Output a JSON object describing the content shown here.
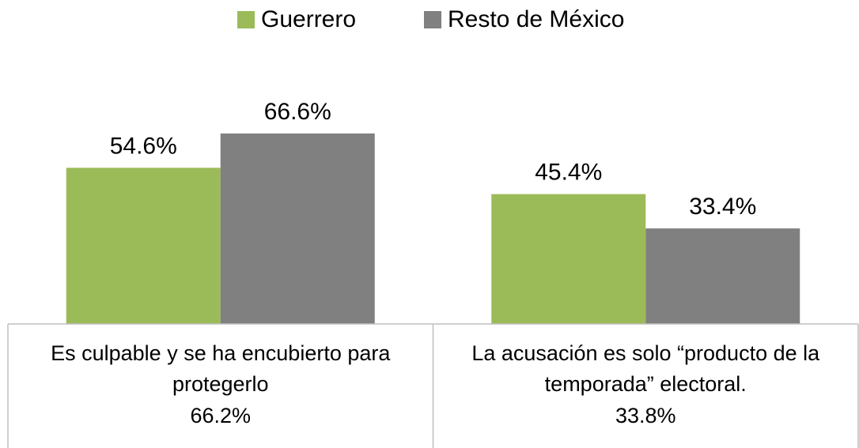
{
  "chart_data": {
    "type": "bar",
    "categories": [
      "Es culpable y se ha encubierto para protegerlo",
      "La acusación es solo “producto de la temporada” electoral."
    ],
    "series": [
      {
        "name": "Guerrero",
        "color": "#9bbb59",
        "values": [
          54.6,
          45.4
        ],
        "value_labels": [
          "54.6%",
          "45.4%"
        ]
      },
      {
        "name": "Resto de México",
        "color": "#808080",
        "values": [
          66.6,
          33.4
        ],
        "value_labels": [
          "66.6%",
          "33.4%"
        ]
      }
    ],
    "totals": {
      "values": [
        66.2,
        33.8
      ],
      "value_labels": [
        "66.2%",
        "33.8%"
      ]
    },
    "legend": "top"
  }
}
